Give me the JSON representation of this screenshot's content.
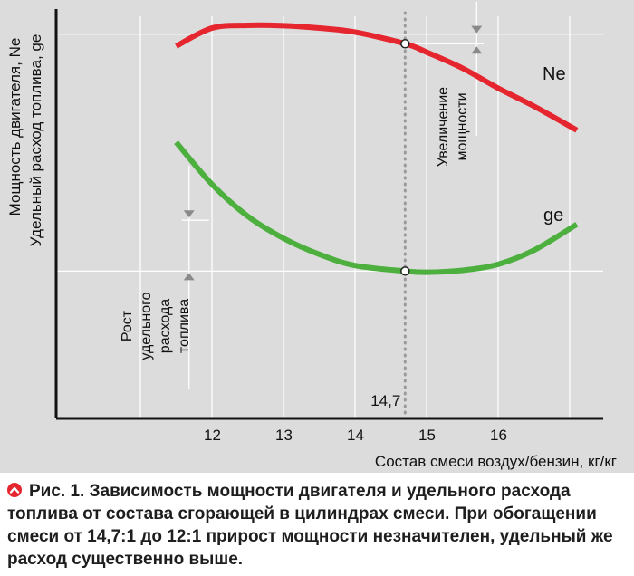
{
  "colors": {
    "panel": "#dcdcdc",
    "grid": "#ffffff",
    "axis": "#111111",
    "ne": "#e5262e",
    "ge": "#4caf3e",
    "marker": "#8a8a8a",
    "dotted": "#9a9a9a",
    "caption_icon": "#e5262e"
  },
  "chart_data": {
    "type": "line",
    "xlabel": "Состав смеси воздух/бензин, кг/кг",
    "ylabel_top": "Мощность двигателя, Ne",
    "ylabel_bottom": "Удельный расход топлива, ge",
    "x_ticks": [
      "12",
      "13",
      "14",
      "15",
      "16"
    ],
    "x_tick_values": [
      12,
      13,
      14,
      15,
      16
    ],
    "xlim": [
      11,
      17.2
    ],
    "ylim": [
      0,
      100
    ],
    "grid": true,
    "series": [
      {
        "name": "Ne",
        "color": "#e5262e",
        "x": [
          11.5,
          12,
          12.5,
          13,
          13.5,
          14,
          14.7,
          15,
          15.5,
          16,
          16.5,
          17.1
        ],
        "values": [
          93,
          97.5,
          98.2,
          98.1,
          97.5,
          96.5,
          93.6,
          91.5,
          87.5,
          82.5,
          78,
          72
        ]
      },
      {
        "name": "ge",
        "color": "#4caf3e",
        "x": [
          11.5,
          12,
          12.5,
          13,
          13.5,
          14,
          14.7,
          15,
          15.5,
          16,
          16.5,
          17.1
        ],
        "values": [
          69,
          58.5,
          50.5,
          45,
          41,
          38.2,
          36.8,
          36.5,
          37,
          38.5,
          42,
          48.5
        ]
      }
    ],
    "reference_x": 14.7,
    "reference_label": "14,7",
    "annotations": {
      "power_gain": "Увеличение мощности",
      "consumption_rise": "Рост удельного расхода топлива"
    }
  },
  "caption": "Рис. 1. Зависимость мощности двигателя и удельного расхода топлива от состава сгорающей в цилиндрах смеси. При обогащении смеси от 14,7:1 до 12:1 прирост мощности незначителен, удельный же расход существенно выше."
}
